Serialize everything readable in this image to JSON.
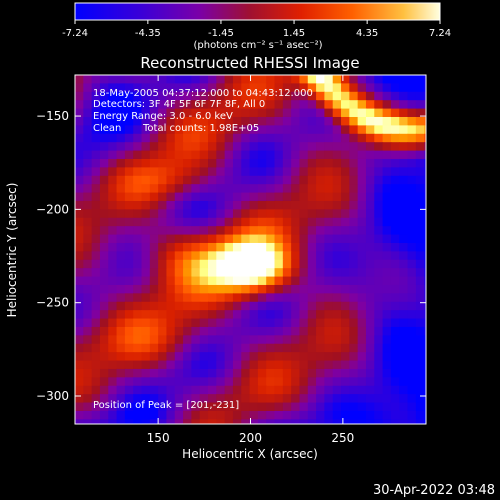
{
  "colorbar": {
    "ticks": [
      "-7.24",
      "-4.35",
      "-1.45",
      "1.45",
      "4.35",
      "7.24"
    ],
    "range": [
      -7.24,
      7.24
    ],
    "units": "(photons cm⁻² s⁻¹ asec⁻²)"
  },
  "footer": {
    "timestamp": "30-Apr-2022 03:48"
  },
  "chart_data": {
    "type": "heatmap",
    "title": "Reconstructed RHESSI Image",
    "xlabel": "Heliocentric X (arcsec)",
    "ylabel": "Heliocentric Y (arcsec)",
    "xlim": [
      105,
      295
    ],
    "ylim": [
      -315,
      -128
    ],
    "x_ticks": [
      150,
      200,
      250
    ],
    "y_ticks": [
      -150,
      -200,
      -250,
      -300
    ],
    "colorscale": [
      "#0000ff",
      "#4b00c8",
      "#8000a0",
      "#a01020",
      "#d82000",
      "#ff5000",
      "#ff9a00",
      "#ffff80",
      "#ffffff"
    ],
    "info": {
      "line1": "18-May-2005 04:37:12.000 to 04:43:12.000",
      "line2": "Detectors: 3F 4F 5F 6F 7F 8F, All 0",
      "line3": "Energy Range: 3.0 - 6.0 keV",
      "line4_method": "Clean",
      "line4_counts": "Total counts: 1.98E+05"
    },
    "peak": {
      "label": "Position of Peak = [201,-231]",
      "x": 201,
      "y": -231
    }
  }
}
